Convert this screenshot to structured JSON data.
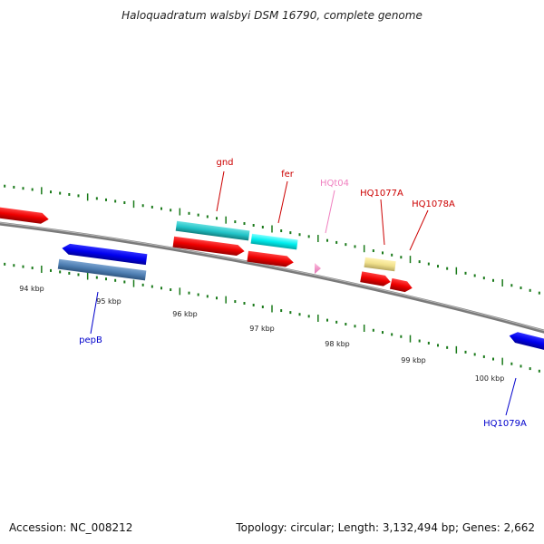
{
  "title": "Haloquadratum walsbyi DSM 16790, complete genome",
  "footer": {
    "accession": "Accession: NC_008212",
    "summary": "Topology: circular; Length: 3,132,494 bp; Genes: 2,662"
  },
  "kbp_labels": [
    "94 kbp",
    "95 kbp",
    "96 kbp",
    "97 kbp",
    "98 kbp",
    "99 kbp",
    "100 kbp"
  ],
  "gene_labels": [
    {
      "text": "gnd",
      "color": "#cc0000"
    },
    {
      "text": "fer",
      "color": "#cc0000"
    },
    {
      "text": "HQt04",
      "color": "#f080c0"
    },
    {
      "text": "HQ1077A",
      "color": "#cc0000"
    },
    {
      "text": "HQ1078A",
      "color": "#cc0000"
    },
    {
      "text": "pepB",
      "color": "#0000cc"
    },
    {
      "text": "HQ1079A",
      "color": "#0000cc"
    }
  ]
}
